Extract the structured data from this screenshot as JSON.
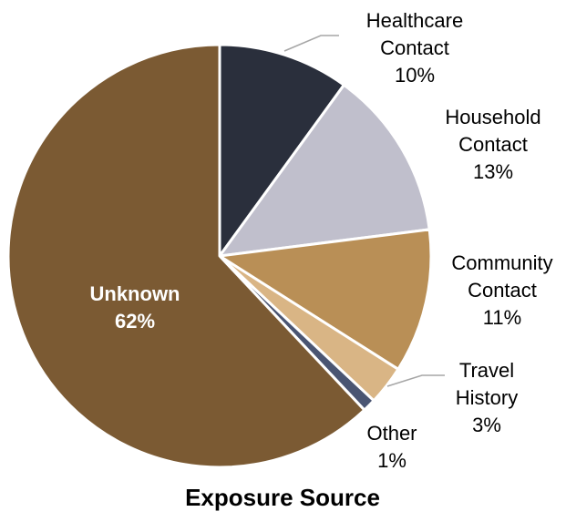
{
  "chart_data": {
    "type": "pie",
    "title": "Exposure Source",
    "slices": [
      {
        "label": "Healthcare Contact",
        "value": 10,
        "value_label": "10%",
        "color": "#2a2f3c"
      },
      {
        "label": "Household Contact",
        "value": 13,
        "value_label": "13%",
        "color": "#c0bfcc"
      },
      {
        "label": "Community Contact",
        "value": 11,
        "value_label": "11%",
        "color": "#b98f56"
      },
      {
        "label": "Travel History",
        "value": 3,
        "value_label": "3%",
        "color": "#d9b585"
      },
      {
        "label": "Other",
        "value": 1,
        "value_label": "1%",
        "color": "#4a5572"
      },
      {
        "label": "Unknown",
        "value": 62,
        "value_label": "62%",
        "color": "#7b5a33"
      }
    ]
  }
}
